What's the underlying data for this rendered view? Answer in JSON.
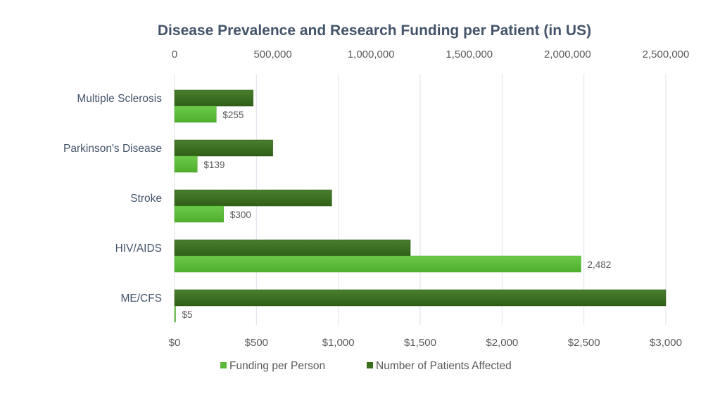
{
  "chart_data": {
    "type": "bar",
    "orientation": "horizontal",
    "title": "Disease Prevalence and Research Funding per Patient (in US)",
    "categories": [
      "Multiple Sclerosis",
      "Parkinson's Disease",
      "Stroke",
      "HIV/AIDS",
      "ME/CFS"
    ],
    "series": [
      {
        "name": "Number of Patients Affected",
        "axis": "top",
        "color": "#3a6e1f",
        "values": [
          400000,
          500000,
          800000,
          1200000,
          2500000
        ],
        "labels": [
          "",
          "",
          "",
          "",
          ""
        ]
      },
      {
        "name": "Funding per Person",
        "axis": "bottom",
        "color": "#5cb83a",
        "values": [
          255,
          139,
          300,
          2482,
          5
        ],
        "labels": [
          "$255",
          "$139",
          "$300",
          "2,482",
          "$5"
        ]
      }
    ],
    "top_axis": {
      "range": [
        0,
        2500000
      ],
      "ticks": [
        0,
        500000,
        1000000,
        1500000,
        2000000,
        2500000
      ],
      "tick_labels": [
        "0",
        "500,000",
        "1,000,000",
        "1,500,000",
        "2,000,000",
        "2,500,000"
      ]
    },
    "bottom_axis": {
      "range": [
        0,
        3000
      ],
      "ticks": [
        0,
        500,
        1000,
        1500,
        2000,
        2500,
        3000
      ],
      "tick_labels": [
        "$0",
        "$500",
        "$1,000",
        "$1,500",
        "$2,000",
        "$2,500",
        "$3,000"
      ]
    },
    "xlabel": "",
    "ylabel": "",
    "grid": true,
    "legend": {
      "position": "bottom",
      "entries": [
        {
          "name": "Funding per Person",
          "color": "#5cb83a"
        },
        {
          "name": "Number of Patients Affected",
          "color": "#3a6e1f"
        }
      ]
    }
  }
}
